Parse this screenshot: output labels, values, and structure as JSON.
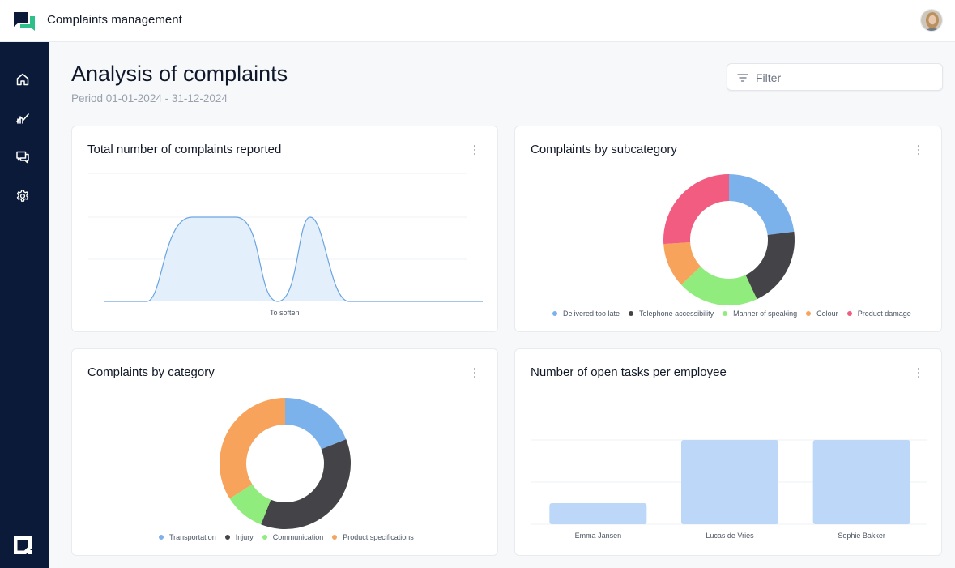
{
  "header": {
    "app_title": "Complaints management"
  },
  "sidebar": {
    "items": [
      {
        "icon": "home-icon"
      },
      {
        "icon": "analytics-icon"
      },
      {
        "icon": "chat-icon"
      },
      {
        "icon": "settings-icon"
      }
    ]
  },
  "page": {
    "title": "Analysis of complaints",
    "period": "Period 01-01-2024 - 31-12-2024",
    "filter_placeholder": "Filter"
  },
  "colors": {
    "blue": "#7cb2ec",
    "dark": "#434348",
    "green": "#90ed7d",
    "orange": "#f7a35c",
    "pink": "#f15c80",
    "bar": "#bcd7f8",
    "area_fill": "#e3effb",
    "area_line": "#6ba4e0",
    "sidebar_bg": "#0b1a38"
  },
  "cards": {
    "total": {
      "title": "Total number of complaints reported"
    },
    "subcategory": {
      "title": "Complaints by subcategory"
    },
    "category": {
      "title": "Complaints by category"
    },
    "tasks": {
      "title": "Number of open tasks per employee"
    }
  },
  "chart_data": [
    {
      "id": "total",
      "type": "area",
      "title": "Total number of complaints reported",
      "xlabel": "To soften",
      "series_shape": "smoothed area with two humps: a wide plateau in the left half and a narrower peak further right, equal in height",
      "grid": true
    },
    {
      "id": "subcategory",
      "type": "pie",
      "title": "Complaints by subcategory",
      "donut": true,
      "legend": "bottom",
      "labels": [
        "Delivered too late",
        "Telephone accessibility",
        "Manner of speaking",
        "Colour",
        "Product damage"
      ],
      "values": [
        23,
        20,
        20,
        11,
        26
      ],
      "colors": [
        "#7cb2ec",
        "#434348",
        "#90ed7d",
        "#f7a35c",
        "#f15c80"
      ]
    },
    {
      "id": "category",
      "type": "pie",
      "title": "Complaints by category",
      "donut": true,
      "legend": "bottom",
      "labels": [
        "Transportation",
        "Injury",
        "Communication",
        "Product specifications"
      ],
      "values": [
        19,
        37,
        10,
        34
      ],
      "colors": [
        "#7cb2ec",
        "#434348",
        "#90ed7d",
        "#f7a35c"
      ]
    },
    {
      "id": "tasks",
      "type": "bar",
      "title": "Number of open tasks per employee",
      "categories": [
        "Emma Jansen",
        "Lucas de Vries",
        "Sophie Bakker"
      ],
      "values": [
        1,
        4,
        4
      ],
      "ylim": [
        0,
        4
      ],
      "grid": true,
      "color": "#bcd7f8"
    }
  ]
}
